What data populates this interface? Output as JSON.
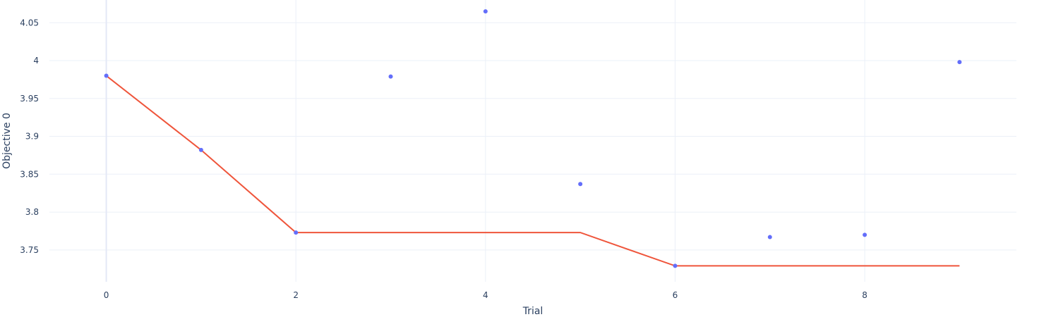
{
  "chart_data": {
    "type": "scatter",
    "xlabel": "Trial",
    "ylabel": "Objective 0",
    "xlim": [
      -0.6,
      9.6
    ],
    "ylim": [
      3.708,
      4.08
    ],
    "x_ticks": [
      0,
      2,
      4,
      6,
      8
    ],
    "y_ticks": [
      3.75,
      3.8,
      3.85,
      3.9,
      3.95,
      4,
      4.05
    ],
    "y_tick_labels": [
      "3.75",
      "3.8",
      "3.85",
      "3.9",
      "3.95",
      "4",
      "4.05"
    ],
    "grid": true,
    "legend": "none",
    "series": [
      {
        "mode": "markers",
        "color": "#636efa",
        "x": [
          0,
          1,
          2,
          3,
          4,
          5,
          6,
          7,
          8,
          9
        ],
        "y": [
          3.98,
          3.882,
          3.773,
          3.979,
          4.065,
          3.837,
          3.729,
          3.767,
          3.77,
          3.998
        ]
      },
      {
        "mode": "lines",
        "color": "#ef553b",
        "x": [
          0,
          1,
          2,
          3,
          4,
          5,
          6,
          7,
          8,
          9
        ],
        "y": [
          3.98,
          3.882,
          3.773,
          3.773,
          3.773,
          3.773,
          3.729,
          3.729,
          3.729,
          3.729
        ]
      }
    ]
  }
}
